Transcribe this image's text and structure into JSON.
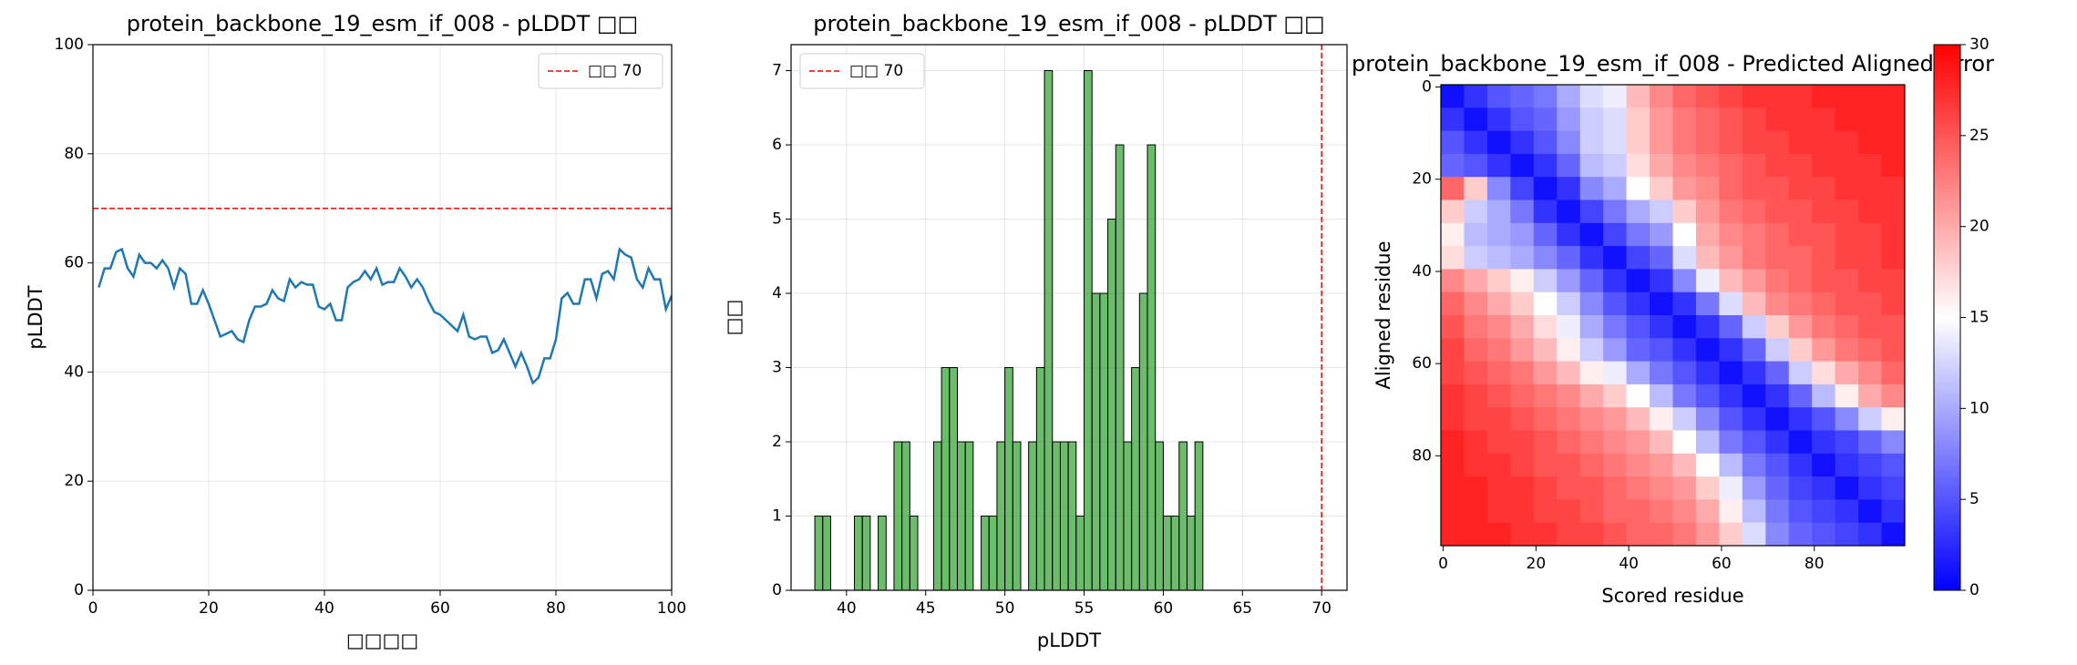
{
  "chart_data": [
    {
      "type": "line",
      "title": "protein_backbone_19_esm_if_008 - pLDDT □□",
      "xlabel": "□□□□",
      "ylabel": "pLDDT",
      "x": [
        1,
        2,
        3,
        4,
        5,
        6,
        7,
        8,
        9,
        10,
        11,
        12,
        13,
        14,
        15,
        16,
        17,
        18,
        19,
        20,
        21,
        22,
        23,
        24,
        25,
        26,
        27,
        28,
        29,
        30,
        31,
        32,
        33,
        34,
        35,
        36,
        37,
        38,
        39,
        40,
        41,
        42,
        43,
        44,
        45,
        46,
        47,
        48,
        49,
        50,
        51,
        52,
        53,
        54,
        55,
        56,
        57,
        58,
        59,
        60,
        61,
        62,
        63,
        64,
        65,
        66,
        67,
        68,
        69,
        70,
        71,
        72,
        73,
        74,
        75,
        76,
        77,
        78,
        79,
        80,
        81,
        82,
        83,
        84,
        85,
        86,
        87,
        88,
        89,
        90,
        91,
        92,
        93,
        94,
        95,
        96,
        97,
        98,
        99,
        100
      ],
      "values": [
        55.5,
        59,
        59,
        62,
        62.5,
        59,
        57.5,
        61.5,
        60,
        60,
        59,
        60.5,
        59,
        55.5,
        59,
        58,
        52.5,
        52.5,
        55,
        52.5,
        49.5,
        46.5,
        47,
        47.5,
        46,
        45.5,
        49.5,
        52,
        52,
        52.5,
        55,
        53.5,
        53,
        57,
        55.5,
        56.5,
        56,
        56,
        52,
        51.5,
        52.5,
        49.5,
        49.5,
        55.5,
        56.5,
        57,
        58.5,
        57,
        59,
        56,
        56.5,
        56.5,
        59,
        57.5,
        55.5,
        57,
        55.5,
        53,
        51,
        50.5,
        49.5,
        48.5,
        47.5,
        50.5,
        46.5,
        46,
        46.5,
        46.5,
        43.5,
        44,
        46,
        43.5,
        41,
        43.5,
        41,
        38,
        39,
        42.5,
        42.5,
        46,
        53.5,
        54.5,
        52.5,
        52.5,
        57,
        57,
        53.5,
        58,
        58.5,
        57,
        62.5,
        61.5,
        61,
        57,
        55.5,
        59,
        57,
        57,
        51.5,
        54
      ],
      "color": "#1f77b4",
      "hlines": [
        {
          "name": "□□ 70",
          "value": 70,
          "color": "#ff0000"
        }
      ],
      "xlim": [
        0,
        100
      ],
      "xticks": [
        0,
        20,
        40,
        60,
        80,
        100
      ],
      "ylim": [
        0,
        100
      ],
      "yticks": [
        0,
        20,
        40,
        60,
        80,
        100
      ],
      "grid": true,
      "legend": "upper right"
    },
    {
      "type": "histogram",
      "title": "protein_backbone_19_esm_if_008 - pLDDT □□",
      "xlabel": "pLDDT",
      "ylabel": "□□",
      "bins": [
        38,
        38.5,
        39,
        39.5,
        40,
        40.5,
        41,
        41.5,
        42,
        42.5,
        43,
        43.5,
        44,
        44.5,
        45,
        45.5,
        46,
        46.5,
        47,
        47.5,
        48,
        48.5,
        49,
        49.5,
        50,
        50.5,
        51,
        51.5,
        52,
        52.5,
        53,
        53.5,
        54,
        54.5,
        55,
        55.5,
        56,
        56.5,
        57,
        57.5,
        58,
        58.5,
        59,
        59.5,
        60,
        60.5,
        61,
        61.5,
        62,
        62.5
      ],
      "values": [
        1,
        1,
        0,
        0,
        0,
        1,
        1,
        0,
        1,
        0,
        2,
        2,
        1,
        0,
        0,
        2,
        3,
        3,
        2,
        2,
        0,
        1,
        1,
        2,
        3,
        2,
        0,
        2,
        3,
        7,
        2,
        2,
        2,
        1,
        7,
        4,
        4,
        5,
        6,
        2,
        3,
        4,
        6,
        2,
        1,
        1,
        2,
        1,
        2
      ],
      "color": "#2ca02c",
      "vlines": [
        {
          "name": "□□ 70",
          "value": 70,
          "color": "#ff0000"
        }
      ],
      "xlim": [
        36.5,
        71.6
      ],
      "xticks": [
        40,
        45,
        50,
        55,
        60,
        65,
        70
      ],
      "ylim": [
        0,
        7.35
      ],
      "yticks": [
        0,
        1,
        2,
        3,
        4,
        5,
        6,
        7
      ],
      "grid": true,
      "legend": "upper left"
    },
    {
      "type": "heatmap",
      "title": "protein_backbone_19_esm_if_008 - Predicted Aligned Error",
      "xlabel": "Scored residue",
      "ylabel": "Aligned residue",
      "z": [
        [
          1,
          3,
          5,
          6,
          7,
          10,
          13,
          14,
          19,
          22,
          24,
          25,
          26,
          27,
          27,
          27,
          28,
          28,
          28,
          28
        ],
        [
          3,
          1,
          3,
          5,
          6,
          9,
          12,
          13,
          18,
          21,
          23,
          24,
          25,
          26,
          27,
          27,
          27,
          28,
          28,
          28
        ],
        [
          5,
          3,
          1,
          3,
          5,
          8,
          12,
          13,
          18,
          21,
          23,
          24,
          25,
          26,
          26,
          27,
          27,
          27,
          28,
          28
        ],
        [
          6,
          5,
          3,
          1,
          3,
          6,
          11,
          12,
          17,
          20,
          22,
          23,
          24,
          25,
          26,
          26,
          27,
          27,
          27,
          28
        ],
        [
          24,
          18,
          8,
          4,
          1,
          3,
          8,
          10,
          15,
          18,
          21,
          22,
          24,
          25,
          25,
          26,
          26,
          27,
          27,
          27
        ],
        [
          18,
          12,
          10,
          7,
          3,
          1,
          4,
          7,
          10,
          12,
          18,
          21,
          23,
          24,
          25,
          25,
          26,
          26,
          27,
          27
        ],
        [
          16,
          11,
          10,
          9,
          6,
          3,
          1,
          4,
          7,
          9,
          15,
          20,
          22,
          23,
          24,
          25,
          25,
          26,
          26,
          27
        ],
        [
          17,
          12,
          11,
          10,
          8,
          6,
          3,
          1,
          4,
          6,
          13,
          19,
          21,
          23,
          24,
          24,
          25,
          26,
          26,
          27
        ],
        [
          22,
          20,
          18,
          16,
          12,
          9,
          6,
          3,
          1,
          3,
          8,
          14,
          19,
          21,
          23,
          24,
          25,
          25,
          26,
          26
        ],
        [
          24,
          22,
          20,
          18,
          15,
          12,
          8,
          5,
          3,
          1,
          3,
          7,
          13,
          19,
          22,
          23,
          24,
          25,
          25,
          26
        ],
        [
          25,
          23,
          22,
          20,
          17,
          14,
          10,
          7,
          5,
          3,
          1,
          3,
          6,
          12,
          18,
          21,
          23,
          24,
          25,
          25
        ],
        [
          26,
          24,
          23,
          21,
          19,
          16,
          12,
          9,
          6,
          5,
          3,
          1,
          3,
          6,
          12,
          18,
          21,
          23,
          24,
          25
        ],
        [
          26,
          25,
          24,
          23,
          21,
          19,
          16,
          14,
          10,
          7,
          5,
          3,
          1,
          3,
          6,
          12,
          17,
          20,
          22,
          24
        ],
        [
          27,
          26,
          25,
          24,
          23,
          22,
          20,
          18,
          15,
          11,
          7,
          5,
          3,
          1,
          3,
          6,
          11,
          16,
          20,
          22
        ],
        [
          27,
          26,
          26,
          25,
          24,
          23,
          22,
          21,
          19,
          16,
          12,
          8,
          5,
          3,
          1,
          3,
          5,
          8,
          12,
          16
        ],
        [
          28,
          27,
          26,
          26,
          25,
          24,
          23,
          22,
          21,
          19,
          15,
          11,
          7,
          5,
          3,
          1,
          3,
          4,
          6,
          8
        ],
        [
          28,
          27,
          27,
          26,
          25,
          25,
          24,
          23,
          22,
          21,
          19,
          15,
          11,
          7,
          5,
          3,
          1,
          3,
          4,
          5
        ],
        [
          28,
          28,
          27,
          27,
          26,
          25,
          25,
          24,
          23,
          22,
          21,
          18,
          14,
          9,
          6,
          4,
          3,
          1,
          3,
          4
        ],
        [
          28,
          28,
          27,
          27,
          26,
          26,
          25,
          24,
          24,
          23,
          22,
          20,
          16,
          11,
          7,
          5,
          4,
          3,
          1,
          3
        ],
        [
          28,
          28,
          28,
          27,
          27,
          26,
          26,
          25,
          24,
          24,
          23,
          21,
          18,
          13,
          8,
          6,
          5,
          4,
          3,
          1
        ]
      ],
      "colormap": "bwr",
      "zlim": [
        0,
        30
      ],
      "colorbar_ticks": [
        0,
        5,
        10,
        15,
        20,
        25,
        30
      ],
      "xlim": [
        -0.5,
        99.5
      ],
      "xticks": [
        0,
        20,
        40,
        60,
        80
      ],
      "ylim": [
        99.5,
        -0.5
      ],
      "yticks": [
        0,
        20,
        40,
        60,
        80
      ],
      "grid": false
    }
  ]
}
